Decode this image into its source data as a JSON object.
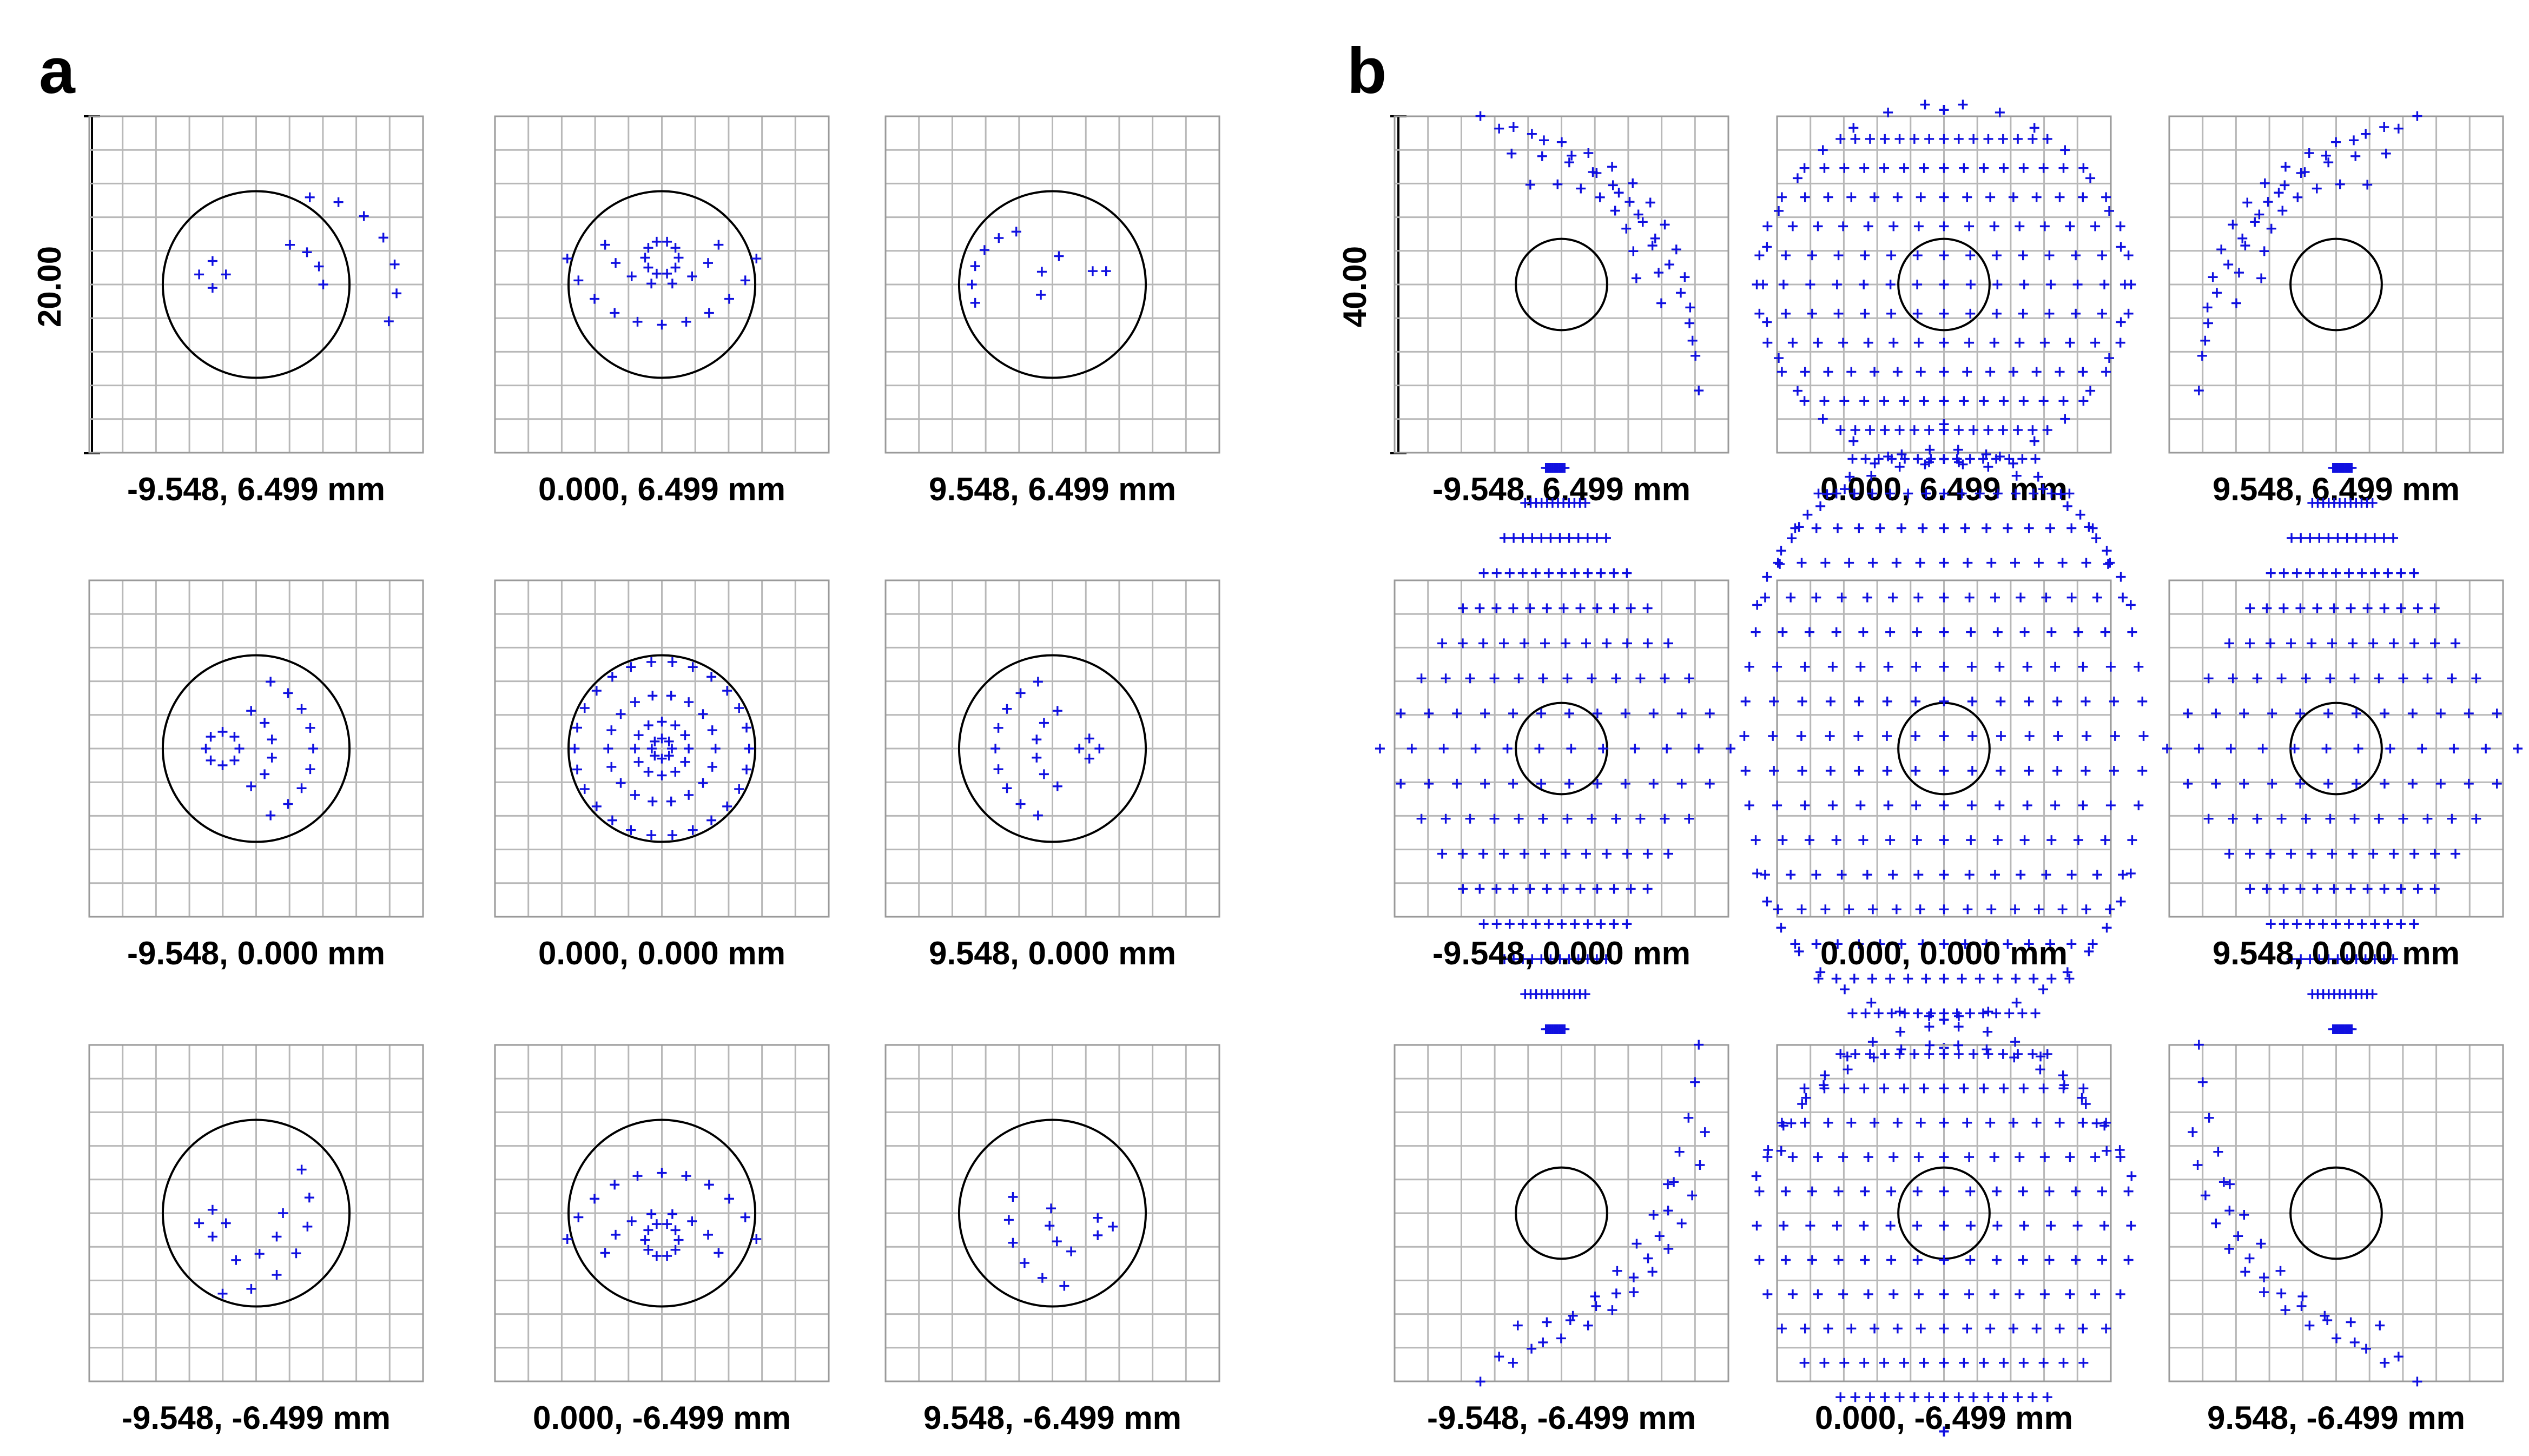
{
  "chart_data": [
    {
      "type": "scatter",
      "panel": "a",
      "scale_label": "20.00",
      "grid": true,
      "cells": [
        {
          "caption": "-9.548, 6.499 mm",
          "field": [
            -9.548,
            6.499
          ],
          "airy_radius": 5.6,
          "rings": [
            {
              "cx": 1.6,
              "cy": 0.0,
              "r": 2.6,
              "a0": -25,
              "a1": 90,
              "n": 7
            },
            {
              "cx": 0.8,
              "cy": 0.0,
              "r": 1.2,
              "a0": 0,
              "a1": 80,
              "n": 4
            },
            {
              "cx": -1.3,
              "cy": 0.3,
              "r": 0.4,
              "a0": 0,
              "a1": 360,
              "n": 4
            }
          ]
        },
        {
          "caption": "0.000, 6.499 mm",
          "field": [
            0.0,
            6.499
          ],
          "airy_radius": 5.6,
          "rings": [
            {
              "cx": 0,
              "cy": 1.8,
              "r": 3.0,
              "a0": 200,
              "a1": 340,
              "n": 11
            },
            {
              "cx": 0,
              "cy": 1.8,
              "r": 1.8,
              "a0": 200,
              "a1": 340,
              "n": 8
            },
            {
              "cx": 0,
              "cy": 0.8,
              "r": 0.5,
              "a0": 0,
              "a1": 360,
              "n": 10
            }
          ]
        },
        {
          "caption": "9.548, 6.499 mm",
          "field": [
            9.548,
            6.499
          ],
          "airy_radius": 5.6,
          "rings": [
            {
              "cx": -0.8,
              "cy": 0.0,
              "r": 1.6,
              "a0": 100,
              "a1": 200,
              "n": 6
            },
            {
              "cx": 0.5,
              "cy": 0.0,
              "r": 0.9,
              "a0": 110,
              "a1": 200,
              "n": 3
            },
            {
              "cx": 1.4,
              "cy": 0.4,
              "r": 0.2,
              "a0": 0,
              "a1": 360,
              "n": 2
            }
          ]
        },
        {
          "caption": "-9.548, 0.000 mm",
          "field": [
            -9.548,
            0.0
          ],
          "airy_radius": 5.6,
          "rings": [
            {
              "cx": -0.5,
              "cy": 0,
              "r": 2.2,
              "a0": -65,
              "a1": 65,
              "n": 9
            },
            {
              "cx": -0.8,
              "cy": 0,
              "r": 1.3,
              "a0": -60,
              "a1": 60,
              "n": 6
            },
            {
              "cx": -1.0,
              "cy": 0,
              "r": 0.5,
              "a0": 0,
              "a1": 360,
              "n": 8
            }
          ]
        },
        {
          "caption": "0.000, 0.000 mm",
          "field": [
            0.0,
            0.0
          ],
          "airy_radius": 5.6,
          "rings": [
            {
              "cx": 0,
              "cy": 0,
              "r": 2.6,
              "a0": 0,
              "a1": 360,
              "n": 26
            },
            {
              "cx": 0,
              "cy": 0,
              "r": 1.6,
              "a0": 0,
              "a1": 360,
              "n": 18
            },
            {
              "cx": 0,
              "cy": 0,
              "r": 0.8,
              "a0": 0,
              "a1": 360,
              "n": 12
            },
            {
              "cx": 0,
              "cy": 0,
              "r": 0.3,
              "a0": 0,
              "a1": 360,
              "n": 8
            }
          ]
        },
        {
          "caption": "9.548, 0.000 mm",
          "field": [
            9.548,
            0.0
          ],
          "airy_radius": 5.6,
          "rings": [
            {
              "cx": 0.5,
              "cy": 0,
              "r": 2.2,
              "a0": 115,
              "a1": 245,
              "n": 9
            },
            {
              "cx": 0.8,
              "cy": 0,
              "r": 1.3,
              "a0": 120,
              "a1": 240,
              "n": 6
            },
            {
              "cx": 1.1,
              "cy": 0,
              "r": 0.3,
              "a0": 0,
              "a1": 360,
              "n": 4
            }
          ]
        },
        {
          "caption": "-9.548, -6.499 mm",
          "field": [
            -9.548,
            -6.499
          ],
          "airy_radius": 5.6,
          "rings": [
            {
              "cx": -1.0,
              "cy": 0.2,
              "r": 2.6,
              "a0": -90,
              "a1": 25,
              "n": 7
            },
            {
              "cx": -0.6,
              "cy": 0.0,
              "r": 1.4,
              "a0": -90,
              "a1": 0,
              "n": 4
            },
            {
              "cx": -1.3,
              "cy": -0.3,
              "r": 0.4,
              "a0": 0,
              "a1": 360,
              "n": 4
            }
          ]
        },
        {
          "caption": "0.000, -6.499 mm",
          "field": [
            0.0,
            -6.499
          ],
          "airy_radius": 5.6,
          "rings": [
            {
              "cx": 0,
              "cy": -1.8,
              "r": 3.0,
              "a0": 20,
              "a1": 160,
              "n": 11
            },
            {
              "cx": 0,
              "cy": -1.8,
              "r": 1.8,
              "a0": 20,
              "a1": 160,
              "n": 8
            },
            {
              "cx": 0,
              "cy": -0.8,
              "r": 0.5,
              "a0": 0,
              "a1": 360,
              "n": 10
            }
          ]
        },
        {
          "caption": "9.548, -6.499 mm",
          "field": [
            9.548,
            -6.499
          ],
          "airy_radius": 5.6,
          "rings": [
            {
              "cx": 0.7,
              "cy": -0.2,
              "r": 2.0,
              "a0": 160,
              "a1": 260,
              "n": 6
            },
            {
              "cx": 0.9,
              "cy": -0.2,
              "r": 1.0,
              "a0": 160,
              "a1": 250,
              "n": 4
            },
            {
              "cx": 1.5,
              "cy": -0.4,
              "r": 0.3,
              "a0": 0,
              "a1": 360,
              "n": 3
            }
          ]
        }
      ]
    },
    {
      "type": "scatter",
      "panel": "b",
      "scale_label": "40.00",
      "grid": true,
      "cells": [
        {
          "caption": "-9.548, 6.499 mm",
          "field": [
            -9.548,
            6.499
          ],
          "airy_radius": 5.6,
          "lines": [
            {
              "x0": -2.6,
              "y0": 5.4,
              "x1": 4.4,
              "y1": -3.4,
              "bend": 2.0,
              "n": 13
            },
            {
              "x0": -2.0,
              "y0": 5.0,
              "x1": 4.2,
              "y1": -1.8,
              "bend": 2.0,
              "n": 12
            },
            {
              "x0": -1.6,
              "y0": 4.2,
              "x1": 3.2,
              "y1": -0.6,
              "bend": 1.6,
              "n": 10
            },
            {
              "x0": -1.0,
              "y0": 3.2,
              "x1": 2.4,
              "y1": 0.2,
              "bend": 1.2,
              "n": 8
            }
          ]
        },
        {
          "caption": "0.000, 6.499 mm",
          "field": [
            0.0,
            6.499
          ],
          "airy_radius": 5.6,
          "fill": {
            "cx": 0,
            "cy": 0,
            "rx": 6.0,
            "ry": 5.6,
            "rows": 13,
            "cols": 15
          },
          "rings": [
            {
              "cx": 0,
              "cy": 0,
              "r": 5.8,
              "a0": 0,
              "a1": 360,
              "n": 30
            }
          ]
        },
        {
          "caption": "9.548, 6.499 mm",
          "field": [
            9.548,
            6.499
          ],
          "airy_radius": 5.6,
          "lines": [
            {
              "x0": 2.6,
              "y0": 5.4,
              "x1": -4.4,
              "y1": -3.4,
              "bend": -2.0,
              "n": 13
            },
            {
              "x0": 2.0,
              "y0": 5.0,
              "x1": -4.2,
              "y1": -1.8,
              "bend": -2.0,
              "n": 12
            },
            {
              "x0": 1.6,
              "y0": 4.2,
              "x1": -3.2,
              "y1": -0.6,
              "bend": -1.6,
              "n": 10
            },
            {
              "x0": 1.0,
              "y0": 3.2,
              "x1": -2.4,
              "y1": 0.2,
              "bend": -1.2,
              "n": 8
            }
          ]
        },
        {
          "caption": "-9.548, 0.000 mm",
          "field": [
            -9.548,
            0.0
          ],
          "airy_radius": 5.6,
          "fill": {
            "cx": -0.2,
            "cy": 0,
            "rx": 5.6,
            "ry": 9.0,
            "rows": 17,
            "cols": 12,
            "diamond": true
          }
        },
        {
          "caption": "0.000, 0.000 mm",
          "field": [
            0.0,
            0.0
          ],
          "airy_radius": 5.6,
          "fill": {
            "cx": 0,
            "cy": 0.4,
            "rx": 6.4,
            "ry": 10.0,
            "rows": 19,
            "cols": 15
          },
          "rings": [
            {
              "cx": 0,
              "cy": 4.0,
              "r": 5.6,
              "a0": 20,
              "a1": 160,
              "n": 16
            },
            {
              "cx": 0,
              "cy": 3.0,
              "r": 6.2,
              "a0": 15,
              "a1": 165,
              "n": 18
            },
            {
              "cx": 0,
              "cy": -2.4,
              "r": 6.2,
              "a0": 195,
              "a1": 345,
              "n": 18
            }
          ]
        },
        {
          "caption": "9.548, 0.000 mm",
          "field": [
            9.548,
            0.0
          ],
          "airy_radius": 5.6,
          "fill": {
            "cx": 0.2,
            "cy": 0,
            "rx": 5.6,
            "ry": 9.0,
            "rows": 17,
            "cols": 12,
            "diamond": true
          }
        },
        {
          "caption": "-9.548, -6.499 mm",
          "field": [
            -9.548,
            -6.499
          ],
          "airy_radius": 5.6,
          "lines": [
            {
              "x0": -2.6,
              "y0": -5.4,
              "x1": 4.4,
              "y1": 5.4,
              "bend": -1.8,
              "n": 13
            },
            {
              "x0": -2.0,
              "y0": -4.6,
              "x1": 4.6,
              "y1": 2.6,
              "bend": -1.8,
              "n": 12
            },
            {
              "x0": -1.4,
              "y0": -3.6,
              "x1": 3.6,
              "y1": 1.0,
              "bend": -1.4,
              "n": 10
            }
          ]
        },
        {
          "caption": "0.000, -6.499 mm",
          "field": [
            0.0,
            -6.499
          ],
          "airy_radius": 5.6,
          "fill": {
            "cx": 0,
            "cy": -0.4,
            "rx": 6.0,
            "ry": 6.6,
            "rows": 13,
            "cols": 15
          },
          "rings": [
            {
              "cx": 0,
              "cy": 0.6,
              "r": 5.4,
              "a0": 15,
              "a1": 165,
              "n": 16
            },
            {
              "cx": 0,
              "cy": -1.0,
              "r": 6.4,
              "a0": 20,
              "a1": 160,
              "n": 18
            }
          ]
        },
        {
          "caption": "9.548, -6.499 mm",
          "field": [
            9.548,
            -6.499
          ],
          "airy_radius": 5.6,
          "lines": [
            {
              "x0": 2.6,
              "y0": -5.4,
              "x1": -4.4,
              "y1": 5.4,
              "bend": 1.8,
              "n": 13
            },
            {
              "x0": 2.0,
              "y0": -4.6,
              "x1": -4.6,
              "y1": 2.6,
              "bend": 1.8,
              "n": 12
            },
            {
              "x0": 1.4,
              "y0": -3.6,
              "x1": -3.6,
              "y1": 1.0,
              "bend": 1.4,
              "n": 10
            }
          ]
        }
      ]
    }
  ]
}
